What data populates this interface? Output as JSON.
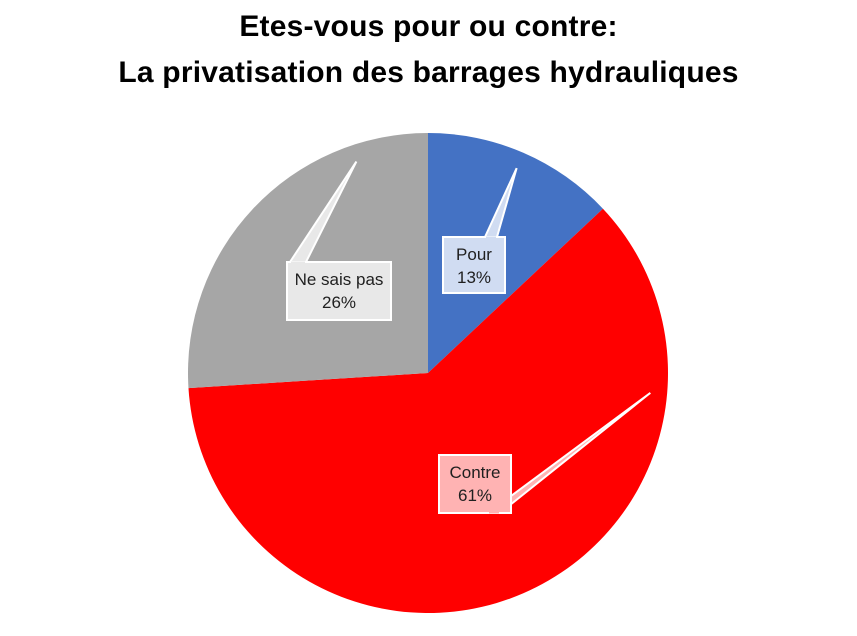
{
  "chart_data": {
    "type": "pie",
    "title": [
      "Etes-vous pour ou contre:",
      "La privatisation des barrages hydrauliques"
    ],
    "slices": [
      {
        "label": "Pour",
        "value": 13,
        "value_label": "13%",
        "color": "#4472C4",
        "callout_fill": "#D0DCF2"
      },
      {
        "label": "Contre",
        "value": 61,
        "value_label": "61%",
        "color": "#FF0000",
        "callout_fill": "#FFB3B3"
      },
      {
        "label": "Ne sais pas",
        "value": 26,
        "value_label": "26%",
        "color": "#A6A6A6",
        "callout_fill": "#E8E8E8"
      }
    ],
    "start_angle": "12 o'clock",
    "direction": "clockwise",
    "legend": "none",
    "data_labels": "callouts"
  }
}
